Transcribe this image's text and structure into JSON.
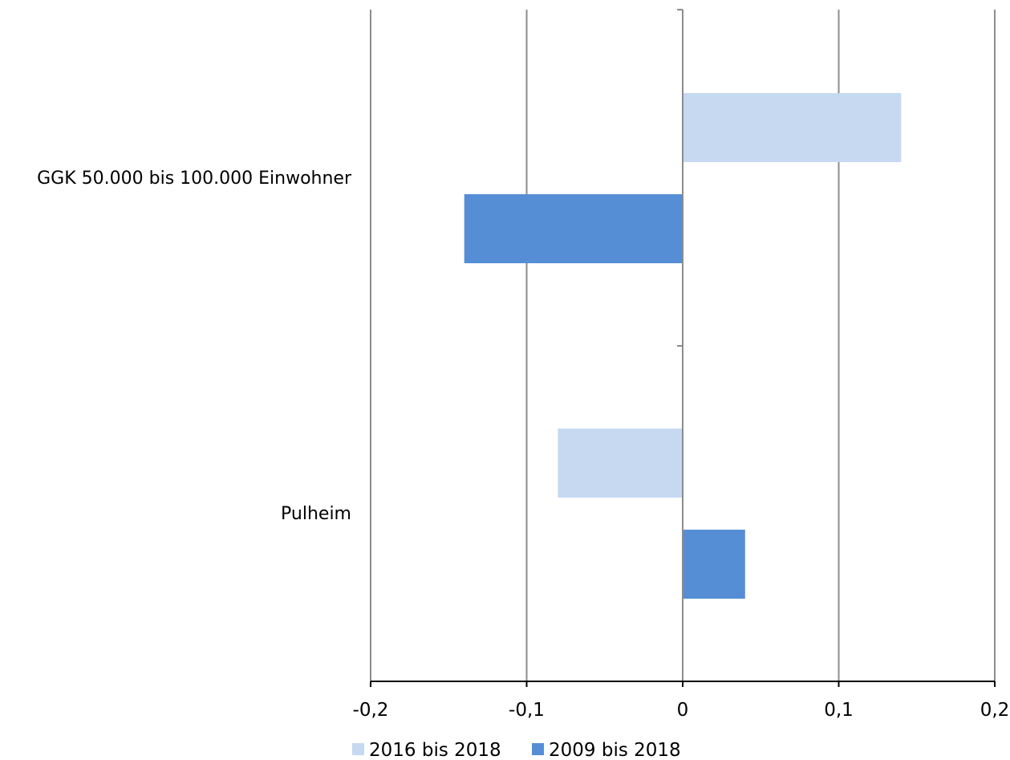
{
  "chart_data": {
    "type": "bar",
    "orientation": "horizontal",
    "categories": [
      "GGK 50.000 bis 100.000 Einwohner",
      "Pulheim"
    ],
    "series": [
      {
        "name": "2016 bis 2018",
        "values": [
          0.14,
          -0.08
        ],
        "color": "#c6d9f1"
      },
      {
        "name": "2009 bis 2018",
        "values": [
          -0.14,
          0.04
        ],
        "color": "#558ed5"
      }
    ],
    "xlim": [
      -0.2,
      0.2
    ],
    "xticks": [
      -0.2,
      -0.1,
      0,
      0.1,
      0.2
    ],
    "xtick_labels": [
      "-0,2",
      "-0,1",
      "0",
      "0,1",
      "0,2"
    ],
    "title": "",
    "xlabel": "",
    "ylabel": "",
    "grid": "vertical",
    "legend": "bottom"
  }
}
